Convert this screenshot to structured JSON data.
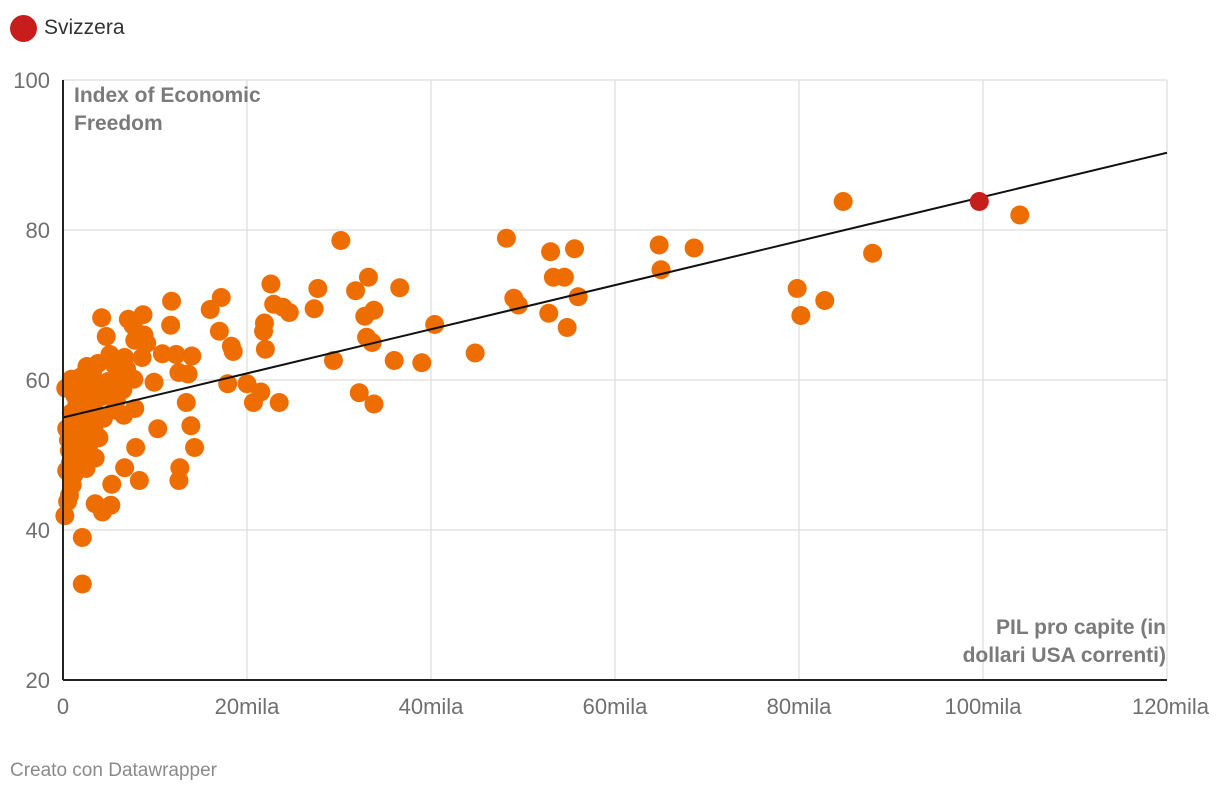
{
  "legend": {
    "label": "Svizzera",
    "color": "#c71e1d"
  },
  "footer": {
    "credit": "Creato con Datawrapper"
  },
  "colors": {
    "points": "#ee6d00",
    "highlight": "#c71e1d",
    "trend": "#111111",
    "grid": "#e3e3e3",
    "axis_title": "#7a7a7a",
    "tick_label": "#6f6f6f"
  },
  "chart_data": {
    "type": "scatter",
    "title": "",
    "ylabel": "Index of Economic Freedom",
    "xlabel": "PIL pro capite (in dollari USA correnti)",
    "ylabel_lines": [
      "Index of Economic",
      "Freedom"
    ],
    "xlabel_lines": [
      "PIL pro capite (in",
      "dollari USA correnti)"
    ],
    "xlim": [
      0,
      120000
    ],
    "ylim": [
      20,
      100
    ],
    "x_ticks": [
      {
        "value": 0,
        "label": "0"
      },
      {
        "value": 20000,
        "label": "20mila"
      },
      {
        "value": 40000,
        "label": "40mila"
      },
      {
        "value": 60000,
        "label": "60mila"
      },
      {
        "value": 80000,
        "label": "80mila"
      },
      {
        "value": 100000,
        "label": "100mila"
      },
      {
        "value": 120000,
        "label": "120mila"
      }
    ],
    "y_ticks": [
      {
        "value": 20,
        "label": "20"
      },
      {
        "value": 40,
        "label": "40"
      },
      {
        "value": 60,
        "label": "60"
      },
      {
        "value": 80,
        "label": "80"
      },
      {
        "value": 100,
        "label": "100"
      }
    ],
    "grid": true,
    "legend_position": "top-left",
    "trendline": {
      "x": [
        0,
        120000
      ],
      "y": [
        55,
        90.3
      ]
    },
    "series": [
      {
        "name": "Svizzera",
        "highlight": true,
        "points": [
          [
            99600,
            83.8
          ]
        ]
      },
      {
        "highlight": false,
        "points": [
          [
            104000,
            82.0
          ],
          [
            84800,
            83.8
          ],
          [
            88000,
            76.9
          ],
          [
            79800,
            72.2
          ],
          [
            80200,
            68.6
          ],
          [
            82800,
            70.6
          ],
          [
            64800,
            78.0
          ],
          [
            65000,
            74.7
          ],
          [
            68600,
            77.6
          ],
          [
            48200,
            78.9
          ],
          [
            49000,
            70.9
          ],
          [
            49500,
            70.0
          ],
          [
            53000,
            77.1
          ],
          [
            53300,
            73.7
          ],
          [
            54500,
            73.7
          ],
          [
            55600,
            77.5
          ],
          [
            56000,
            71.1
          ],
          [
            52800,
            68.9
          ],
          [
            54800,
            67.0
          ],
          [
            44800,
            63.6
          ],
          [
            40400,
            67.4
          ],
          [
            39000,
            62.3
          ],
          [
            36000,
            62.6
          ],
          [
            36600,
            72.3
          ],
          [
            33200,
            73.7
          ],
          [
            33800,
            69.3
          ],
          [
            32800,
            68.5
          ],
          [
            33000,
            65.7
          ],
          [
            33600,
            65.0
          ],
          [
            31800,
            71.9
          ],
          [
            32200,
            58.3
          ],
          [
            33800,
            56.8
          ],
          [
            30200,
            78.6
          ],
          [
            29400,
            62.6
          ],
          [
            27700,
            72.2
          ],
          [
            27300,
            69.5
          ],
          [
            22600,
            72.8
          ],
          [
            22900,
            70.1
          ],
          [
            23900,
            69.7
          ],
          [
            24600,
            69.0
          ],
          [
            21900,
            67.6
          ],
          [
            21800,
            66.5
          ],
          [
            22000,
            64.1
          ],
          [
            21500,
            58.4
          ],
          [
            20700,
            57.0
          ],
          [
            23500,
            57.0
          ],
          [
            20000,
            59.5
          ],
          [
            18300,
            64.5
          ],
          [
            18500,
            63.8
          ],
          [
            17200,
            71.0
          ],
          [
            17000,
            66.5
          ],
          [
            16000,
            69.4
          ],
          [
            17900,
            59.5
          ],
          [
            14000,
            63.2
          ],
          [
            13600,
            60.8
          ],
          [
            12600,
            61.0
          ],
          [
            12300,
            63.4
          ],
          [
            11700,
            67.3
          ],
          [
            11800,
            70.5
          ],
          [
            13400,
            57.0
          ],
          [
            13900,
            53.9
          ],
          [
            14300,
            51.0
          ],
          [
            12700,
            48.3
          ],
          [
            12600,
            46.6
          ],
          [
            10300,
            53.5
          ],
          [
            9900,
            59.7
          ],
          [
            10800,
            63.5
          ],
          [
            8700,
            68.7
          ],
          [
            8800,
            66.0
          ],
          [
            9100,
            64.9
          ],
          [
            8600,
            63.0
          ],
          [
            7800,
            65.3
          ],
          [
            7600,
            67.3
          ],
          [
            7100,
            68.1
          ],
          [
            6700,
            63.0
          ],
          [
            7700,
            60.1
          ],
          [
            6900,
            61.5
          ],
          [
            6300,
            60.5
          ],
          [
            6500,
            58.7
          ],
          [
            6600,
            55.3
          ],
          [
            7800,
            56.2
          ],
          [
            7900,
            51.0
          ],
          [
            8300,
            46.6
          ],
          [
            6700,
            48.3
          ],
          [
            5300,
            46.1
          ],
          [
            5200,
            43.3
          ],
          [
            4300,
            42.4
          ],
          [
            3500,
            43.5
          ],
          [
            4200,
            68.3
          ],
          [
            4700,
            65.8
          ],
          [
            5100,
            63.4
          ],
          [
            5600,
            62.0
          ],
          [
            5500,
            59.0
          ],
          [
            5600,
            56.0
          ],
          [
            4200,
            57.8
          ],
          [
            3600,
            55.1
          ],
          [
            3400,
            53.2
          ],
          [
            3900,
            52.3
          ],
          [
            3500,
            49.6
          ],
          [
            2500,
            48.2
          ],
          [
            2800,
            51.3
          ],
          [
            2300,
            54.8
          ],
          [
            2600,
            57.5
          ],
          [
            2900,
            59.6
          ],
          [
            3200,
            61.0
          ],
          [
            3800,
            62.2
          ],
          [
            2600,
            61.8
          ],
          [
            1800,
            60.3
          ],
          [
            1600,
            58.6
          ],
          [
            1500,
            56.7
          ],
          [
            1400,
            55.0
          ],
          [
            1300,
            53.0
          ],
          [
            1200,
            51.0
          ],
          [
            1100,
            49.3
          ],
          [
            1200,
            47.4
          ],
          [
            1000,
            46.0
          ],
          [
            700,
            44.6
          ],
          [
            500,
            43.8
          ],
          [
            200,
            41.9
          ],
          [
            2100,
            39.0
          ],
          [
            2100,
            32.8
          ],
          [
            300,
            58.9
          ],
          [
            900,
            60.1
          ],
          [
            600,
            59.0
          ],
          [
            400,
            53.5
          ],
          [
            600,
            52.0
          ],
          [
            700,
            50.6
          ],
          [
            800,
            48.9
          ],
          [
            400,
            47.9
          ],
          [
            1900,
            50.1
          ],
          [
            1700,
            52.4
          ],
          [
            2000,
            55.9
          ],
          [
            2400,
            58.0
          ],
          [
            2000,
            53.8
          ],
          [
            3000,
            54.2
          ],
          [
            3300,
            56.5
          ],
          [
            4400,
            54.9
          ],
          [
            4000,
            59.3
          ],
          [
            3100,
            58.8
          ],
          [
            1700,
            57.5
          ],
          [
            1100,
            54.0
          ],
          [
            900,
            55.6
          ],
          [
            1500,
            51.8
          ],
          [
            2700,
            52.3
          ],
          [
            4900,
            59.8
          ],
          [
            5800,
            57.3
          ],
          [
            6200,
            62.5
          ],
          [
            5100,
            58.2
          ],
          [
            2200,
            60.6
          ],
          [
            1300,
            57.9
          ]
        ]
      }
    ]
  }
}
